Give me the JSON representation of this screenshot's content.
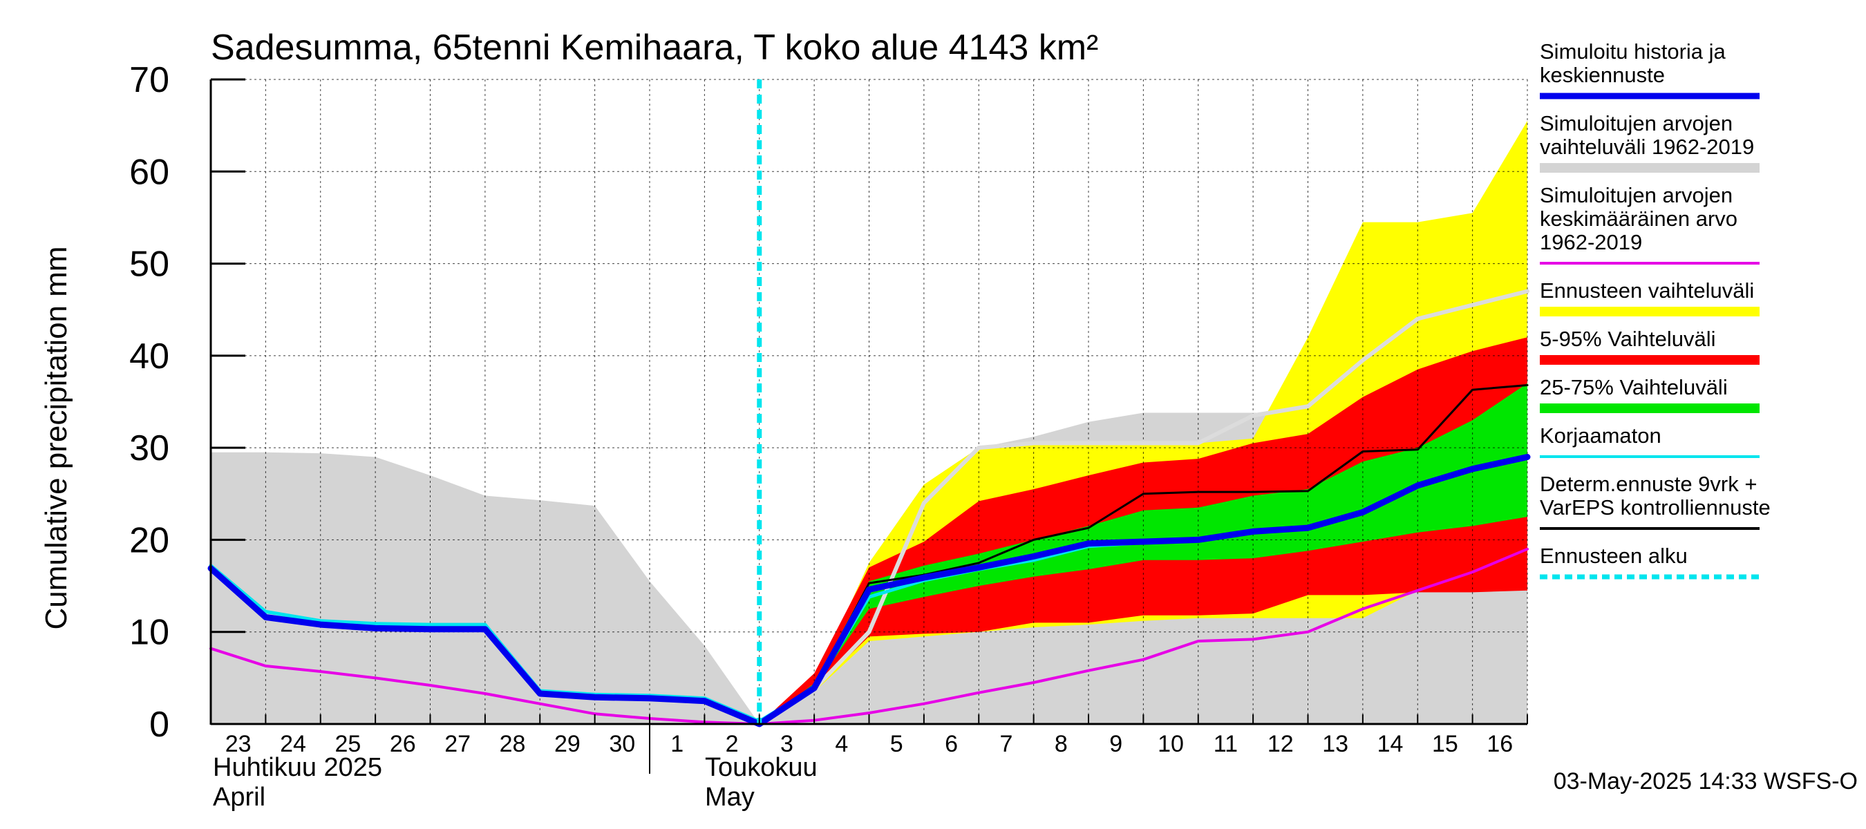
{
  "chart_data": {
    "type": "area",
    "title": "Sadesumma, 65tenni Kemihaara, T koko alue 4143 km²",
    "ylabel": "Cumulative precipitation   mm",
    "ylim": [
      0,
      70
    ],
    "yticks": [
      0,
      10,
      20,
      30,
      40,
      50,
      60,
      70
    ],
    "grid": true,
    "legend_position": "right",
    "x_dates": [
      "2025-04-23",
      "2025-04-24",
      "2025-04-25",
      "2025-04-26",
      "2025-04-27",
      "2025-04-28",
      "2025-04-29",
      "2025-04-30",
      "2025-05-01",
      "2025-05-02",
      "2025-05-03",
      "2025-05-04",
      "2025-05-05",
      "2025-05-06",
      "2025-05-07",
      "2025-05-08",
      "2025-05-09",
      "2025-05-10",
      "2025-05-11",
      "2025-05-12",
      "2025-05-13",
      "2025-05-14",
      "2025-05-15",
      "2025-05-16",
      "2025-05-17"
    ],
    "x_tick_labels": [
      "23",
      "24",
      "25",
      "26",
      "27",
      "28",
      "29",
      "30",
      "1",
      "2",
      "3",
      "4",
      "5",
      "6",
      "7",
      "8",
      "9",
      "10",
      "11",
      "12",
      "13",
      "14",
      "15",
      "16"
    ],
    "month_labels": [
      {
        "line1": "Huhtikuu  2025",
        "line2": "April"
      },
      {
        "line1": "Toukokuu",
        "line2": "May"
      }
    ],
    "forecast_start": "2025-05-03",
    "footer": "03-May-2025 14:33 WSFS-O",
    "colors": {
      "history_range": "#d4d4d4",
      "forecast_range": "#ffff00",
      "p5_95": "#ff0000",
      "p25_75": "#00e600",
      "simulated": "#0000ee",
      "uncorrected": "#00e5ee",
      "mean": "#e600e6",
      "deterministic": "#000000",
      "scenario_mean": "#dcdcdc",
      "forecast_start": "#00e5ee"
    },
    "series": [
      {
        "key": "history_range_upper",
        "x": [
          "2025-04-23",
          "2025-04-24",
          "2025-04-25",
          "2025-04-26",
          "2025-04-27",
          "2025-04-28",
          "2025-04-29",
          "2025-04-30",
          "2025-05-01",
          "2025-05-02",
          "2025-05-03",
          "2025-05-04",
          "2025-05-05",
          "2025-05-06",
          "2025-05-07",
          "2025-05-08",
          "2025-05-09",
          "2025-05-10",
          "2025-05-11",
          "2025-05-12",
          "2025-05-13",
          "2025-05-14",
          "2025-05-15",
          "2025-05-16",
          "2025-05-17"
        ],
        "values": [
          29.5,
          29.5,
          29.4,
          29.0,
          27.0,
          24.8,
          24.3,
          23.7,
          15.5,
          8.5,
          0,
          4.2,
          17.5,
          26.0,
          30.0,
          31.2,
          32.8,
          33.8,
          33.8,
          33.8,
          33.8,
          33.8,
          33.8,
          33.8,
          33.8
        ]
      },
      {
        "key": "history_range_lower",
        "x": [
          "2025-04-23",
          "2025-05-17"
        ],
        "values": [
          0,
          0
        ]
      },
      {
        "key": "forecast_range_upper",
        "x": [
          "2025-05-03",
          "2025-05-04",
          "2025-05-05",
          "2025-05-06",
          "2025-05-07",
          "2025-05-08",
          "2025-05-09",
          "2025-05-10",
          "2025-05-11",
          "2025-05-12",
          "2025-05-13",
          "2025-05-14",
          "2025-05-15",
          "2025-05-16",
          "2025-05-17"
        ],
        "values": [
          0,
          4.5,
          17.5,
          26.0,
          30.0,
          30.5,
          30.5,
          30.5,
          30.5,
          31.0,
          42.0,
          54.5,
          54.5,
          55.5,
          65.5
        ]
      },
      {
        "key": "forecast_range_lower",
        "x": [
          "2025-05-03",
          "2025-05-04",
          "2025-05-05",
          "2025-05-06",
          "2025-05-07",
          "2025-05-08",
          "2025-05-09",
          "2025-05-10",
          "2025-05-11",
          "2025-05-12",
          "2025-05-13",
          "2025-05-14",
          "2025-05-15",
          "2025-05-16",
          "2025-05-17"
        ],
        "values": [
          0,
          3.5,
          9.0,
          9.5,
          10.0,
          10.5,
          10.8,
          11.2,
          11.5,
          11.5,
          11.5,
          11.5,
          14.5,
          14.5,
          15.0
        ]
      },
      {
        "key": "p95",
        "x": [
          "2025-05-03",
          "2025-05-04",
          "2025-05-05",
          "2025-05-06",
          "2025-05-07",
          "2025-05-08",
          "2025-05-09",
          "2025-05-10",
          "2025-05-11",
          "2025-05-12",
          "2025-05-13",
          "2025-05-14",
          "2025-05-15",
          "2025-05-16",
          "2025-05-17"
        ],
        "values": [
          0,
          5.5,
          17.0,
          19.8,
          24.2,
          25.5,
          27.0,
          28.4,
          28.8,
          30.5,
          31.5,
          35.5,
          38.5,
          40.5,
          42.0
        ]
      },
      {
        "key": "p5",
        "x": [
          "2025-05-03",
          "2025-05-04",
          "2025-05-05",
          "2025-05-06",
          "2025-05-07",
          "2025-05-08",
          "2025-05-09",
          "2025-05-10",
          "2025-05-11",
          "2025-05-12",
          "2025-05-13",
          "2025-05-14",
          "2025-05-15",
          "2025-05-16",
          "2025-05-17"
        ],
        "values": [
          0,
          3.8,
          9.5,
          9.8,
          10.0,
          11.0,
          11.0,
          11.8,
          11.8,
          12.0,
          14.0,
          14.0,
          14.3,
          14.3,
          14.5
        ]
      },
      {
        "key": "p75",
        "x": [
          "2025-05-03",
          "2025-05-04",
          "2025-05-05",
          "2025-05-06",
          "2025-05-07",
          "2025-05-08",
          "2025-05-09",
          "2025-05-10",
          "2025-05-11",
          "2025-05-12",
          "2025-05-13",
          "2025-05-14",
          "2025-05-15",
          "2025-05-16",
          "2025-05-17"
        ],
        "values": [
          0,
          4.4,
          15.5,
          17.2,
          18.5,
          20.0,
          21.5,
          23.2,
          23.5,
          24.8,
          25.5,
          28.5,
          30.0,
          33.0,
          37.0
        ]
      },
      {
        "key": "p25",
        "x": [
          "2025-05-03",
          "2025-05-04",
          "2025-05-05",
          "2025-05-06",
          "2025-05-07",
          "2025-05-08",
          "2025-05-09",
          "2025-05-10",
          "2025-05-11",
          "2025-05-12",
          "2025-05-13",
          "2025-05-14",
          "2025-05-15",
          "2025-05-16",
          "2025-05-17"
        ],
        "values": [
          0,
          4.0,
          12.5,
          13.8,
          15.0,
          16.0,
          16.8,
          17.8,
          17.8,
          18.0,
          18.8,
          19.8,
          20.8,
          21.5,
          22.5
        ]
      },
      {
        "key": "scenario_mean",
        "x": [
          "2025-05-03",
          "2025-05-04",
          "2025-05-05",
          "2025-05-06",
          "2025-05-07",
          "2025-05-08",
          "2025-05-09",
          "2025-05-10",
          "2025-05-11",
          "2025-05-12",
          "2025-05-13",
          "2025-05-14",
          "2025-05-15",
          "2025-05-16",
          "2025-05-17"
        ],
        "values": [
          0,
          3.8,
          10.0,
          24.0,
          30.0,
          30.5,
          30.5,
          30.5,
          30.5,
          33.5,
          34.5,
          39.5,
          44.0,
          45.5,
          47.0
        ]
      },
      {
        "key": "mean_1962_2019",
        "x": [
          "2025-04-23",
          "2025-04-24",
          "2025-04-25",
          "2025-04-26",
          "2025-04-27",
          "2025-04-28",
          "2025-04-29",
          "2025-04-30",
          "2025-05-01",
          "2025-05-02",
          "2025-05-03",
          "2025-05-04",
          "2025-05-05",
          "2025-05-06",
          "2025-05-07",
          "2025-05-08",
          "2025-05-09",
          "2025-05-10",
          "2025-05-11",
          "2025-05-12",
          "2025-05-13",
          "2025-05-14",
          "2025-05-15",
          "2025-05-16",
          "2025-05-17"
        ],
        "values": [
          8.2,
          6.3,
          5.7,
          5.0,
          4.2,
          3.3,
          2.2,
          1.1,
          0.6,
          0.2,
          0,
          0.4,
          1.2,
          2.2,
          3.4,
          4.5,
          5.8,
          7.0,
          9.0,
          9.2,
          10.0,
          12.5,
          14.5,
          16.5,
          19.0
        ]
      },
      {
        "key": "uncorrected",
        "x": [
          "2025-04-23",
          "2025-04-24",
          "2025-04-25",
          "2025-04-26",
          "2025-04-27",
          "2025-04-28",
          "2025-04-29",
          "2025-04-30",
          "2025-05-01",
          "2025-05-02",
          "2025-05-03",
          "2025-05-04",
          "2025-05-05",
          "2025-05-06",
          "2025-05-07",
          "2025-05-08",
          "2025-05-09",
          "2025-05-10",
          "2025-05-11",
          "2025-05-12",
          "2025-05-13",
          "2025-05-14",
          "2025-05-15",
          "2025-05-16",
          "2025-05-17"
        ],
        "values": [
          17.2,
          12.2,
          11.2,
          10.9,
          10.8,
          10.8,
          3.6,
          3.2,
          3.1,
          2.8,
          0.3,
          3.9,
          13.8,
          15.6,
          16.8,
          17.8,
          19.3,
          19.7,
          20.0,
          20.9,
          21.3,
          23.0,
          25.8,
          27.6,
          28.9
        ]
      },
      {
        "key": "deterministic",
        "x": [
          "2025-05-03",
          "2025-05-04",
          "2025-05-05",
          "2025-05-06",
          "2025-05-07",
          "2025-05-08",
          "2025-05-09",
          "2025-05-10",
          "2025-05-11",
          "2025-05-12",
          "2025-05-13",
          "2025-05-14",
          "2025-05-15",
          "2025-05-16",
          "2025-05-17"
        ],
        "values": [
          0,
          4.0,
          15.3,
          16.2,
          17.5,
          20.0,
          21.3,
          25.0,
          25.2,
          25.2,
          25.3,
          29.6,
          29.8,
          36.3,
          36.8
        ]
      },
      {
        "key": "simulated",
        "x": [
          "2025-04-23",
          "2025-04-24",
          "2025-04-25",
          "2025-04-26",
          "2025-04-27",
          "2025-04-28",
          "2025-04-29",
          "2025-04-30",
          "2025-05-01",
          "2025-05-02",
          "2025-05-03",
          "2025-05-04",
          "2025-05-05",
          "2025-05-06",
          "2025-05-07",
          "2025-05-08",
          "2025-05-09",
          "2025-05-10",
          "2025-05-11",
          "2025-05-12",
          "2025-05-13",
          "2025-05-14",
          "2025-05-15",
          "2025-05-16",
          "2025-05-17"
        ],
        "values": [
          16.9,
          11.6,
          10.8,
          10.4,
          10.3,
          10.3,
          3.3,
          2.9,
          2.8,
          2.5,
          0,
          3.9,
          14.6,
          15.9,
          17.0,
          18.2,
          19.6,
          19.8,
          20.0,
          20.9,
          21.3,
          23.0,
          25.9,
          27.7,
          29.0
        ]
      }
    ],
    "legend": [
      {
        "lines": [
          "Simuloitu historia ja",
          "keskiennuste"
        ],
        "swatch": "simulated",
        "style": "thick"
      },
      {
        "lines": [
          "Simuloitujen arvojen",
          "vaihteluväli 1962-2019"
        ],
        "swatch": "history_range",
        "style": "thick"
      },
      {
        "lines": [
          "Simuloitujen arvojen",
          "keskimääräinen arvo",
          "   1962-2019"
        ],
        "swatch": "mean",
        "style": "thin"
      },
      {
        "lines": [
          "Ennusteen vaihteluväli"
        ],
        "swatch": "forecast_range",
        "style": "thick"
      },
      {
        "lines": [
          "5-95% Vaihteluväli"
        ],
        "swatch": "p5_95",
        "style": "thick"
      },
      {
        "lines": [
          "25-75% Vaihteluväli"
        ],
        "swatch": "p25_75",
        "style": "thick"
      },
      {
        "lines": [
          "Korjaamaton"
        ],
        "swatch": "uncorrected",
        "style": "thin"
      },
      {
        "lines": [
          "Determ.ennuste 9vrk +",
          "VarEPS kontrolliennuste"
        ],
        "swatch": "deterministic",
        "style": "thin"
      },
      {
        "lines": [
          "Ennusteen alku"
        ],
        "swatch": "forecast_start",
        "style": "dashed"
      }
    ]
  }
}
